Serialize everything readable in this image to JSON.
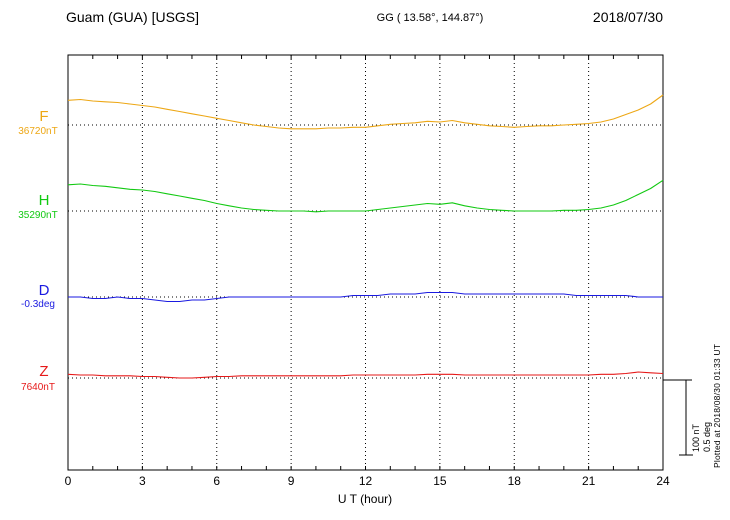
{
  "header": {
    "station": "Guam (GUA)  [USGS]",
    "coords": "GG ( 13.58°, 144.87°)",
    "date": "2018/07/30"
  },
  "footer": {
    "xlabel": "U T (hour)"
  },
  "side": {
    "plotted": "Plotted at 2018/08/30 01:33 UT",
    "scale_nt": "100 nT",
    "scale_deg": "0.5 deg"
  },
  "chart_data": {
    "type": "line",
    "title": "Guam (GUA) [USGS] magnetogram 2018/07/30",
    "xlabel": "U T (hour)",
    "xlim": [
      0,
      24
    ],
    "xticks": [
      0,
      3,
      6,
      9,
      12,
      15,
      18,
      21,
      24
    ],
    "x_start_hour": 0,
    "x_step_hours": 0.5,
    "grid": "dotted-vertical-at-3h-and-dotted-baseline-per-trace",
    "scale_bar": {
      "nT_per_div": 100,
      "deg_per_div": 0.5
    },
    "series": [
      {
        "name": "F",
        "unit": "nT",
        "baseline_value": 36720,
        "baseline_label": "36720nT",
        "color": "#eda715",
        "offsets": [
          33,
          34,
          32,
          31,
          30,
          28,
          26,
          24,
          21,
          18,
          15,
          12,
          9,
          6,
          3,
          0,
          -2,
          -4,
          -5,
          -5,
          -5,
          -4,
          -4,
          -3,
          -3,
          -1,
          1,
          2,
          3,
          5,
          4,
          6,
          3,
          1,
          -1,
          -2,
          -3,
          -2,
          -1,
          -1,
          0,
          1,
          2,
          4,
          8,
          14,
          20,
          28,
          40
        ]
      },
      {
        "name": "H",
        "unit": "nT",
        "baseline_value": 35290,
        "baseline_label": "35290nT",
        "color": "#12c912",
        "offsets": [
          35,
          36,
          34,
          33,
          31,
          29,
          28,
          26,
          23,
          20,
          17,
          14,
          10,
          7,
          4,
          2,
          1,
          0,
          0,
          0,
          -1,
          0,
          0,
          0,
          0,
          2,
          4,
          6,
          8,
          10,
          9,
          11,
          7,
          4,
          2,
          1,
          0,
          0,
          0,
          0,
          1,
          1,
          2,
          4,
          8,
          14,
          22,
          30,
          41
        ]
      },
      {
        "name": "D",
        "unit": "deg",
        "baseline_value": -0.3,
        "baseline_label": "-0.3deg",
        "color": "#1a1ae0",
        "offsets": [
          0,
          0,
          -0.01,
          -0.01,
          0,
          -0.01,
          -0.01,
          -0.02,
          -0.03,
          -0.03,
          -0.02,
          -0.02,
          -0.01,
          0,
          0,
          0,
          0,
          0,
          0,
          0,
          0,
          0,
          0,
          0.01,
          0.01,
          0.01,
          0.02,
          0.02,
          0.02,
          0.03,
          0.03,
          0.03,
          0.02,
          0.02,
          0.02,
          0.02,
          0.02,
          0.02,
          0.02,
          0.02,
          0.02,
          0.01,
          0.01,
          0.01,
          0.01,
          0.01,
          0,
          0,
          0
        ]
      },
      {
        "name": "Z",
        "unit": "nT",
        "baseline_value": 7640,
        "baseline_label": "7640nT",
        "color": "#e61919",
        "offsets": [
          5,
          4,
          4,
          3,
          3,
          3,
          2,
          2,
          1,
          0,
          0,
          1,
          2,
          2,
          3,
          3,
          3,
          3,
          3,
          3,
          3,
          3,
          3,
          4,
          4,
          4,
          4,
          4,
          4,
          5,
          5,
          5,
          4,
          4,
          4,
          4,
          4,
          4,
          4,
          4,
          4,
          4,
          4,
          5,
          5,
          6,
          8,
          7,
          6
        ]
      }
    ]
  }
}
